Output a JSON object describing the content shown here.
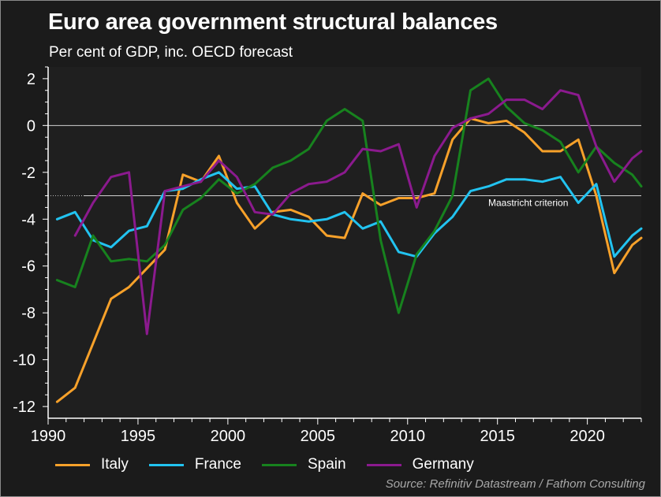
{
  "chart_data": {
    "type": "line",
    "title": "Euro area government structural balances",
    "subtitle": "Per cent of GDP, inc. OECD forecast",
    "xlabel": "",
    "ylabel": "",
    "xlim": [
      1990,
      2023
    ],
    "ylim": [
      -12.5,
      2.5
    ],
    "x_ticks": [
      1990,
      1995,
      2000,
      2005,
      2010,
      2015,
      2020
    ],
    "y_ticks": [
      2,
      0,
      -2,
      -4,
      -6,
      -8,
      -10,
      -12
    ],
    "reference_lines": [
      {
        "y": 0,
        "label": ""
      },
      {
        "y": -3,
        "label": "Maastricht criterion"
      }
    ],
    "series": [
      {
        "name": "Italy",
        "color": "#f7a12a",
        "x": [
          1990.5,
          1991.5,
          1992.5,
          1993.5,
          1994.5,
          1995.5,
          1996.5,
          1997.5,
          1998.5,
          1999.5,
          2000.5,
          2001.5,
          2002.5,
          2003.5,
          2004.5,
          2005.5,
          2006.5,
          2007.5,
          2008.5,
          2009.5,
          2010.5,
          2011.5,
          2012.5,
          2013.5,
          2014.5,
          2015.5,
          2016.5,
          2017.5,
          2018.5,
          2019.5,
          2020.5,
          2021.5,
          2022.5,
          2023
        ],
        "y": [
          -11.8,
          -11.2,
          -9.3,
          -7.4,
          -6.9,
          -6.1,
          -5.3,
          -2.1,
          -2.4,
          -1.3,
          -3.3,
          -4.4,
          -3.7,
          -3.6,
          -3.9,
          -4.7,
          -4.8,
          -2.9,
          -3.4,
          -3.1,
          -3.1,
          -2.9,
          -0.6,
          0.3,
          0.1,
          0.2,
          -0.3,
          -1.1,
          -1.1,
          -0.6,
          -3.0,
          -6.3,
          -5.1,
          -4.8
        ]
      },
      {
        "name": "France",
        "color": "#22c3f0",
        "x": [
          1990.5,
          1991.5,
          1992.5,
          1993.5,
          1994.5,
          1995.5,
          1996.5,
          1997.5,
          1998.5,
          1999.5,
          2000.5,
          2001.5,
          2002.5,
          2003.5,
          2004.5,
          2005.5,
          2006.5,
          2007.5,
          2008.5,
          2009.5,
          2010.5,
          2011.5,
          2012.5,
          2013.5,
          2014.5,
          2015.5,
          2016.5,
          2017.5,
          2018.5,
          2019.5,
          2020.5,
          2021.5,
          2022.5,
          2023
        ],
        "y": [
          -4.0,
          -3.7,
          -4.9,
          -5.2,
          -4.5,
          -4.3,
          -2.8,
          -2.7,
          -2.3,
          -2.0,
          -2.7,
          -2.6,
          -3.8,
          -4.0,
          -4.1,
          -4.0,
          -3.7,
          -4.4,
          -4.1,
          -5.4,
          -5.6,
          -4.6,
          -3.9,
          -2.8,
          -2.6,
          -2.3,
          -2.3,
          -2.4,
          -2.2,
          -3.3,
          -2.5,
          -5.6,
          -4.7,
          -4.4
        ]
      },
      {
        "name": "Spain",
        "color": "#17821e",
        "x": [
          1990.5,
          1991.5,
          1992.5,
          1993.5,
          1994.5,
          1995.5,
          1996.5,
          1997.5,
          1998.5,
          1999.5,
          2000.5,
          2001.5,
          2002.5,
          2003.5,
          2004.5,
          2005.5,
          2006.5,
          2007.5,
          2008.5,
          2009.5,
          2010.5,
          2011.5,
          2012.5,
          2013.5,
          2014.5,
          2015.5,
          2016.5,
          2017.5,
          2018.5,
          2019.5,
          2020.5,
          2021.5,
          2022.5,
          2023
        ],
        "y": [
          -6.6,
          -6.9,
          -4.7,
          -5.8,
          -5.7,
          -5.8,
          -5.1,
          -3.6,
          -3.1,
          -2.3,
          -2.9,
          -2.5,
          -1.8,
          -1.5,
          -1.0,
          0.2,
          0.7,
          0.2,
          -4.9,
          -8.0,
          -5.5,
          -4.5,
          -3.0,
          1.5,
          2.0,
          0.8,
          0.1,
          -0.2,
          -0.7,
          -2.0,
          -0.9,
          -1.6,
          -2.1,
          -2.6
        ]
      },
      {
        "name": "Germany",
        "color": "#8b1a8e",
        "x": [
          1991.5,
          1992.5,
          1993.5,
          1994.5,
          1995.5,
          1996.5,
          1997.5,
          1998.5,
          1999.5,
          2000.5,
          2001.5,
          2002.5,
          2003.5,
          2004.5,
          2005.5,
          2006.5,
          2007.5,
          2008.5,
          2009.5,
          2010.5,
          2011.5,
          2012.5,
          2013.5,
          2014.5,
          2015.5,
          2016.5,
          2017.5,
          2018.5,
          2019.5,
          2020.5,
          2021.5,
          2022.5,
          2023
        ],
        "y": [
          -4.7,
          -3.3,
          -2.2,
          -2.0,
          -8.9,
          -2.8,
          -2.6,
          -2.4,
          -1.5,
          -2.2,
          -3.7,
          -3.8,
          -2.9,
          -2.5,
          -2.4,
          -2.0,
          -1.0,
          -1.1,
          -0.8,
          -3.5,
          -1.3,
          -0.1,
          0.3,
          0.5,
          1.1,
          1.1,
          0.7,
          1.5,
          1.3,
          -0.9,
          -2.4,
          -1.4,
          -1.1
        ]
      }
    ],
    "legend": [
      "Italy",
      "France",
      "Spain",
      "Germany"
    ],
    "source": "Source: Refinitiv Datastream / Fathom Consulting"
  },
  "colors": {
    "background": "#1b1b1b",
    "plot_background": "#1f1f1f",
    "axis": "#ffffff",
    "text": "#ffffff",
    "source_text": "#a8a8a8"
  }
}
